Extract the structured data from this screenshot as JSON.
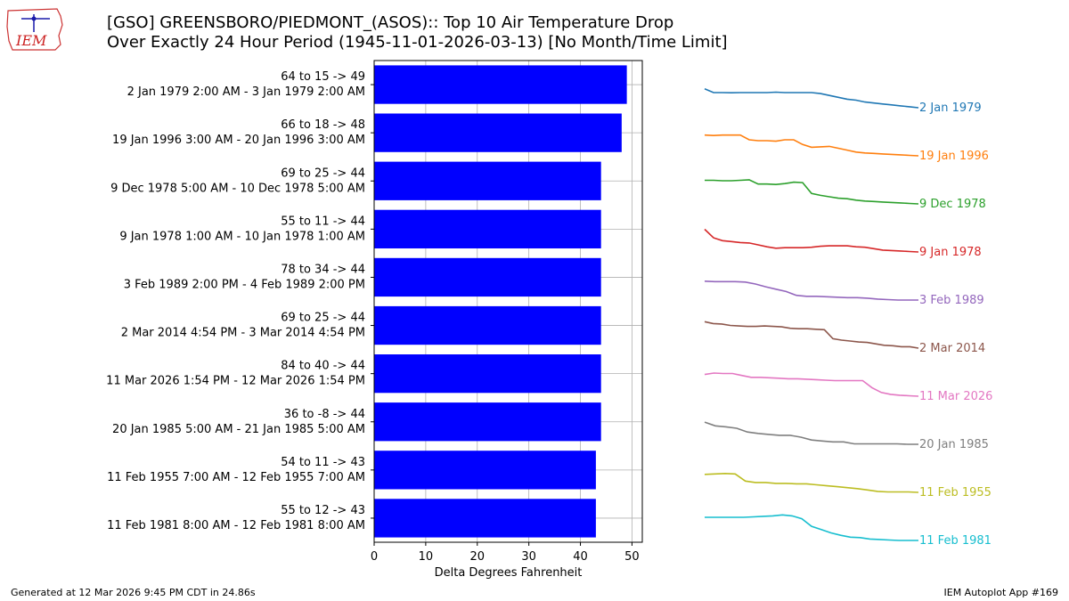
{
  "header": {
    "title_line1": "[GSO] GREENSBORO/PIEDMONT_(ASOS):: Top 10 Air Temperature Drop",
    "title_line2": "Over Exactly 24 Hour Period (1945-11-01-2026-03-13) [No Month/Time Limit]",
    "logo_text": "IEM"
  },
  "footer": {
    "left": "Generated at 12 Mar 2026 9:45 PM CDT in 24.86s",
    "right": "IEM Autoplot App #169"
  },
  "colors": {
    "bar": "#0000ff",
    "series": [
      "#1f77b4",
      "#ff7f0e",
      "#2ca02c",
      "#d62728",
      "#9467bd",
      "#8c564b",
      "#e377c2",
      "#7f7f7f",
      "#bcbd22",
      "#17becf"
    ]
  },
  "chart_data": {
    "type": "bar",
    "orientation": "horizontal",
    "xlabel": "Delta Degrees Fahrenheit",
    "xlim": [
      0,
      52
    ],
    "xticks": [
      0,
      10,
      20,
      30,
      40,
      50
    ],
    "grid": true,
    "categories": [
      {
        "line1": "64 to 15 -> 49",
        "line2": "2 Jan 1979 2:00 AM - 3 Jan 1979 2:00 AM"
      },
      {
        "line1": "66 to 18 -> 48",
        "line2": "19 Jan 1996 3:00 AM - 20 Jan 1996 3:00 AM"
      },
      {
        "line1": "69 to 25 -> 44",
        "line2": "9 Dec 1978 5:00 AM - 10 Dec 1978 5:00 AM"
      },
      {
        "line1": "55 to 11 -> 44",
        "line2": "9 Jan 1978 1:00 AM - 10 Jan 1978 1:00 AM"
      },
      {
        "line1": "78 to 34 -> 44",
        "line2": "3 Feb 1989 2:00 PM - 4 Feb 1989 2:00 PM"
      },
      {
        "line1": "69 to 25 -> 44",
        "line2": "2 Mar 2014 4:54 PM - 3 Mar 2014 4:54 PM"
      },
      {
        "line1": "84 to 40 -> 44",
        "line2": "11 Mar 2026 1:54 PM - 12 Mar 2026 1:54 PM"
      },
      {
        "line1": "36 to -8 -> 44",
        "line2": "20 Jan 1985 5:00 AM - 21 Jan 1985 5:00 AM"
      },
      {
        "line1": "54 to 11 -> 43",
        "line2": "11 Feb 1955 7:00 AM - 12 Feb 1955 7:00 AM"
      },
      {
        "line1": "55 to 12 -> 43",
        "line2": "11 Feb 1981 8:00 AM - 12 Feb 1981 8:00 AM"
      }
    ],
    "values": [
      49,
      48,
      44,
      44,
      44,
      44,
      44,
      44,
      43,
      43
    ],
    "sparklines": [
      {
        "label": "2 Jan 1979",
        "temps": [
          64,
          60,
          60,
          59.8,
          60,
          60,
          60,
          60,
          60.5,
          60,
          60,
          60,
          60,
          59,
          57,
          55,
          53,
          52,
          50,
          49,
          48,
          47,
          46,
          45,
          44
        ]
      },
      {
        "label": "19 Jan 1996",
        "temps": [
          66,
          65.5,
          66,
          66,
          66,
          61,
          60,
          60,
          59.5,
          61,
          61,
          56,
          53,
          53.5,
          54,
          52,
          50,
          48,
          47,
          46.5,
          46,
          45.5,
          45,
          44.5,
          44
        ]
      },
      {
        "label": "9 Dec 1978",
        "temps": [
          69,
          69,
          68.5,
          68.5,
          69,
          69.5,
          65,
          65,
          64.5,
          65.5,
          67,
          66.5,
          55,
          53,
          51.5,
          50,
          49.5,
          48,
          47,
          46.5,
          46,
          45.5,
          45,
          44.5,
          44
        ]
      },
      {
        "label": "9 Jan 1978",
        "temps": [
          55,
          46,
          43,
          42,
          41,
          40.5,
          38.5,
          36.5,
          35,
          35.5,
          35.5,
          35.5,
          36,
          37,
          37.5,
          37.5,
          37.5,
          36.5,
          36,
          34.5,
          33,
          32.5,
          32,
          31.5,
          31
        ]
      },
      {
        "label": "3 Feb 1989",
        "temps": [
          78,
          77.5,
          77.5,
          77.5,
          77,
          75,
          72,
          69.5,
          67,
          63,
          62,
          62,
          61.5,
          61,
          60.5,
          60.5,
          60,
          59,
          58.5,
          58,
          58,
          58
        ]
      },
      {
        "label": "2 Mar 2014",
        "temps": [
          69,
          67,
          66.5,
          65,
          64.5,
          64,
          64,
          64.5,
          64,
          63.5,
          62,
          61.5,
          61.5,
          61,
          60.5,
          51,
          49.5,
          48.5,
          47.5,
          47,
          45.5,
          44,
          43.5,
          42.5,
          42.5,
          41
        ]
      },
      {
        "label": "11 Mar 2026",
        "temps": [
          84,
          85.5,
          85,
          85,
          83,
          81,
          81,
          80.5,
          80,
          79.5,
          79.5,
          79,
          78.5,
          78,
          77.5,
          77.5,
          77.5,
          77.5,
          70,
          65,
          63,
          62,
          61.5,
          61
        ]
      },
      {
        "label": "20 Jan 1985",
        "temps": [
          36,
          32,
          31,
          29.5,
          25.5,
          24,
          23,
          22,
          22,
          20,
          17,
          16,
          15,
          15,
          13,
          13,
          13,
          13,
          13,
          12.5,
          12.5
        ]
      },
      {
        "label": "11 Feb 1955",
        "temps": [
          54,
          54.5,
          55,
          54.5,
          47,
          45.5,
          45.5,
          44.5,
          44.5,
          44,
          44,
          43,
          42,
          41,
          40,
          39,
          37.5,
          36,
          35.5,
          35.5,
          35.5,
          35
        ]
      },
      {
        "label": "11 Feb 1981",
        "temps": [
          55,
          55,
          55,
          55,
          55,
          55.5,
          56,
          56.5,
          57.5,
          56.5,
          53.5,
          45.5,
          42,
          38.5,
          36,
          34,
          33.5,
          32,
          31.5,
          31,
          30.5,
          30.5,
          30.5
        ]
      }
    ]
  }
}
